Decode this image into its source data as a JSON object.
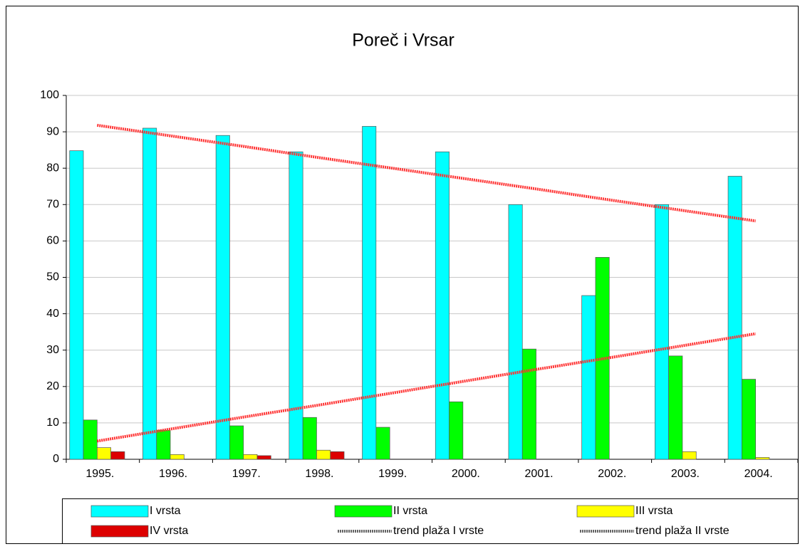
{
  "chart_data": {
    "type": "bar",
    "title": "Poreč i Vrsar",
    "categories": [
      "1995.",
      "1996.",
      "1997.",
      "1998.",
      "1999.",
      "2000.",
      "2001.",
      "2002.",
      "2003.",
      "2004."
    ],
    "series": [
      {
        "name": "I vrsta",
        "color": "#00ffff",
        "values": [
          84.8,
          91,
          89,
          84.5,
          91.5,
          84.5,
          70,
          45,
          70,
          77.8
        ]
      },
      {
        "name": "II vrsta",
        "color": "#00ff00",
        "values": [
          10.8,
          8,
          9.2,
          11.5,
          8.8,
          15.8,
          30.3,
          55.5,
          28.4,
          22
        ]
      },
      {
        "name": "III vrsta",
        "color": "#ffff00",
        "values": [
          3.2,
          1.3,
          1.3,
          2.5,
          null,
          null,
          null,
          null,
          2.1,
          0.5
        ]
      },
      {
        "name": "IV vrsta",
        "color": "#dd0000",
        "values": [
          2.1,
          null,
          1,
          2.1,
          null,
          null,
          null,
          null,
          null,
          null
        ]
      },
      {
        "name": "trend plaža I vrste",
        "type": "line",
        "color": "#ff3333",
        "values": [
          91.8,
          88.9,
          86.0,
          83.0,
          80.1,
          77.2,
          74.3,
          71.3,
          68.4,
          65.5
        ]
      },
      {
        "name": "trend plaža II vrste",
        "type": "line",
        "color": "#ff3333",
        "values": [
          5,
          8.3,
          11.6,
          14.8,
          18.1,
          21.4,
          24.7,
          27.9,
          31.2,
          34.5
        ]
      }
    ],
    "ylim": [
      0,
      100
    ],
    "yticks": [
      0,
      10,
      20,
      30,
      40,
      50,
      60,
      70,
      80,
      90,
      100
    ],
    "grid": true,
    "legend": "bottom"
  }
}
